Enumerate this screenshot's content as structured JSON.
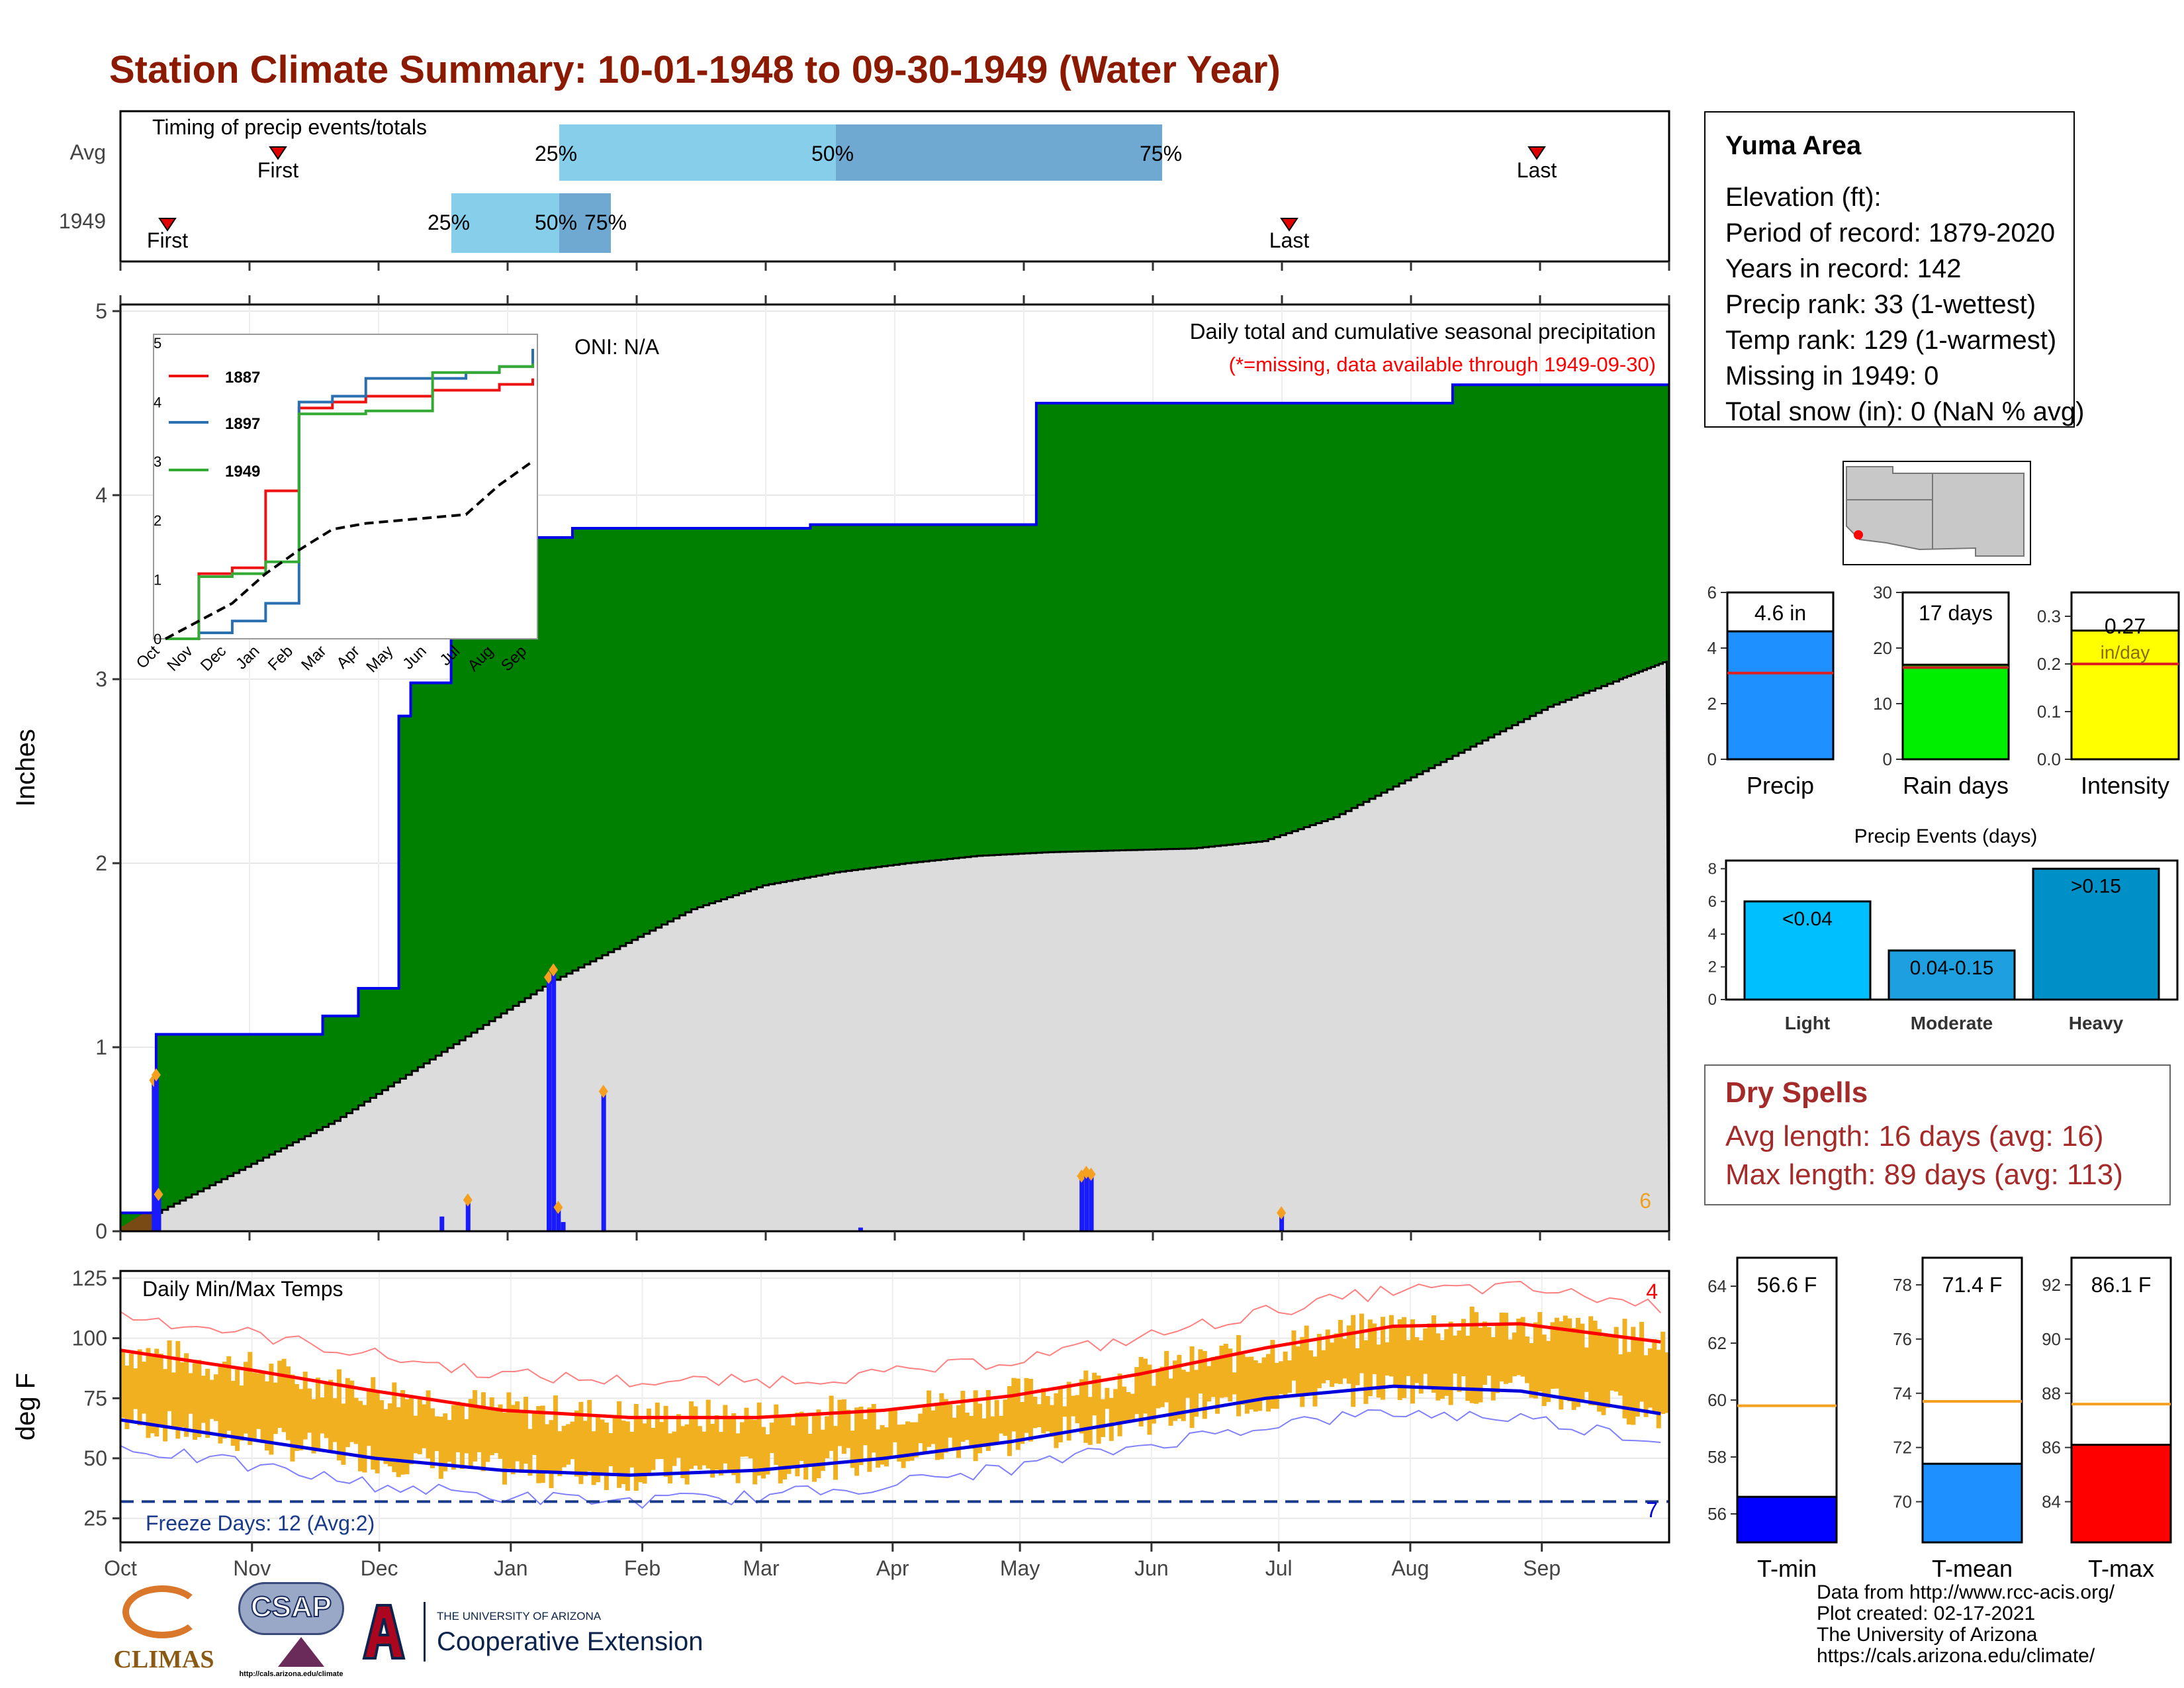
{
  "title": "Station Climate Summary: 10-01-1948 to 09-30-1949 (Water Year)",
  "timing_panel": {
    "label": "Timing of precip events/totals",
    "rows": [
      "Avg",
      "1949"
    ],
    "avg": {
      "first": "First",
      "last": "Last",
      "p25": "25%",
      "p50": "50%",
      "p75": "75%"
    },
    "year": {
      "first": "First",
      "last": "Last",
      "p25": "25%",
      "p50": "50%",
      "p75": "75%"
    }
  },
  "station": {
    "name": "Yuma Area",
    "elevation": "Elevation (ft):",
    "period": "Period of record: 1879-2020",
    "years": "Years in record: 142",
    "precip_rank": "Precip rank: 33 (1-wettest)",
    "temp_rank": "Temp rank: 129 (1-warmest)",
    "missing": "Missing in 1949: 0",
    "snow": "Total snow (in): 0 (NaN % avg)"
  },
  "precip_panel": {
    "ylabel": "Inches",
    "oni": "ONI: N/A",
    "caption": "Daily total and cumulative seasonal precipitation",
    "missing_note": "(*=missing, data available through 1949-09-30)",
    "corner_count": "6"
  },
  "temp_panel": {
    "ylabel": "deg F",
    "label": "Daily Min/Max Temps",
    "freeze": "Freeze Days: 12 (Avg:2)",
    "hot_count": "4",
    "cold_count": "7"
  },
  "dry_spells": {
    "title": "Dry Spells",
    "avg": "Avg length: 16 days (avg: 16)",
    "max": "Max length: 89 days (avg: 113)"
  },
  "events_panel": {
    "title": "Precip Events (days)"
  },
  "footer": {
    "l1": "Data from http://www.rcc-acis.org/",
    "l2": "Plot created: 02-17-2021",
    "l3": "The University of Arizona",
    "l4": "https://cals.arizona.edu/climate/"
  },
  "logos": {
    "climas": "CLIMAS",
    "csap": "CSAP",
    "csap_url": "http://cals.arizona.edu/climate",
    "ua_small": "THE UNIVERSITY OF ARIZONA",
    "coop": "Cooperative Extension"
  },
  "colors": {
    "title": "#8b1a00",
    "green": "#008000",
    "grey": "#dcdcdc",
    "blue": "#0000ff",
    "gold": "#f0b020",
    "red": "#ff0000",
    "dry": "#a52a2a"
  },
  "chart_data": [
    {
      "type": "area",
      "id": "cumulative-precip",
      "months": [
        "Oct",
        "Nov",
        "Dec",
        "Jan",
        "Feb",
        "Mar",
        "Apr",
        "May",
        "Jun",
        "Jul",
        "Aug",
        "Sep"
      ],
      "yticks": [
        "0",
        "1",
        "2",
        "3",
        "4",
        "5"
      ],
      "ylim": [
        0,
        5
      ],
      "series": [
        {
          "name": "1949",
          "x_days": [
            0,
            14,
            15,
            80,
            85,
            100,
            115,
            117,
            122,
            126,
            139,
            175,
            190,
            230,
            280,
            290,
            330,
            380,
            385,
            400,
            440,
            485,
            560,
            600,
            630,
            650
          ],
          "values": [
            0.1,
            0.12,
            1.07,
            1.07,
            1.17,
            1.32,
            1.32,
            2.8,
            2.98,
            2.98,
            3.77,
            3.77,
            3.82,
            3.82,
            3.82,
            3.84,
            3.84,
            3.84,
            4.5,
            4.5,
            4.5,
            4.5,
            4.6,
            4.6,
            4.6,
            4.6
          ]
        },
        {
          "x_days": [
            0,
            30,
            60,
            90,
            120,
            150,
            180,
            210,
            240,
            270,
            300,
            330,
            360,
            390,
            420,
            450,
            480,
            510,
            540,
            570,
            600,
            630,
            650
          ],
          "values": [
            0,
            0.2,
            0.4,
            0.6,
            0.85,
            1.1,
            1.35,
            1.55,
            1.75,
            1.88,
            1.95,
            2.0,
            2.04,
            2.06,
            2.07,
            2.08,
            2.12,
            2.25,
            2.45,
            2.65,
            2.85,
            3.0,
            3.1
          ]
        }
      ],
      "daily_bars": {
        "x_days": [
          14,
          15,
          16,
          135,
          146,
          180,
          182,
          184,
          186,
          203,
          311,
          404,
          406,
          408,
          488
        ],
        "values": [
          0.82,
          0.85,
          0.2,
          0.08,
          0.17,
          1.38,
          1.42,
          0.13,
          0.05,
          0.76,
          0.02,
          0.3,
          0.32,
          0.31,
          0.1
        ]
      }
    },
    {
      "type": "line",
      "id": "inset-cumulative",
      "categories": [
        "Oct",
        "Nov",
        "Dec",
        "Jan",
        "Feb",
        "Mar",
        "Apr",
        "May",
        "Jun",
        "Jul",
        "Aug",
        "Sep"
      ],
      "yticks": [
        "0",
        "1",
        "2",
        "3",
        "4",
        "5"
      ],
      "ylim": [
        0,
        5
      ],
      "series": [
        {
          "name": "1887",
          "color": "#ee1111",
          "values": [
            0,
            1.1,
            1.2,
            2.5,
            3.9,
            4.0,
            4.1,
            4.1,
            4.2,
            4.2,
            4.3,
            4.4
          ]
        },
        {
          "name": "1897",
          "color": "#2a6fb0",
          "values": [
            0,
            0.1,
            0.3,
            0.6,
            4.0,
            4.1,
            4.4,
            4.4,
            4.4,
            4.5,
            4.6,
            4.9
          ]
        },
        {
          "name": "1949",
          "color": "#33aa33",
          "values": [
            0,
            1.05,
            1.1,
            1.3,
            3.8,
            3.8,
            3.85,
            3.85,
            4.5,
            4.5,
            4.6,
            4.65
          ]
        },
        {
          "values": [
            0,
            0.3,
            0.6,
            1.1,
            1.5,
            1.85,
            1.95,
            2.0,
            2.05,
            2.1,
            2.6,
            3.0
          ]
        }
      ]
    },
    {
      "type": "bar",
      "id": "precip-total",
      "categories": [
        "Precip"
      ],
      "values": [
        4.6
      ],
      "average": 3.1,
      "label": "4.6 in",
      "yticks": [
        "0",
        "2",
        "4",
        "6"
      ],
      "ylim": [
        0,
        6
      ]
    },
    {
      "type": "bar",
      "id": "rain-days",
      "categories": [
        "Rain days"
      ],
      "values": [
        17
      ],
      "average": 16.5,
      "label": "17 days",
      "yticks": [
        "0",
        "10",
        "20",
        "30"
      ],
      "ylim": [
        0,
        30
      ]
    },
    {
      "type": "bar",
      "id": "intensity",
      "categories": [
        "Intensity"
      ],
      "values": [
        0.27
      ],
      "average": 0.2,
      "label": "0.27",
      "unit": "in/day",
      "yticks": [
        "0.0",
        "0.1",
        "0.2",
        "0.3"
      ],
      "ylim": [
        0,
        0.35
      ]
    },
    {
      "type": "bar",
      "id": "precip-events",
      "categories": [
        "Light",
        "Moderate",
        "Heavy"
      ],
      "values": [
        6,
        3,
        8
      ],
      "labels": [
        "<0.04",
        "0.04-0.15",
        ">0.15"
      ],
      "yticks": [
        "0",
        "2",
        "4",
        "6",
        "8"
      ],
      "ylim": [
        0,
        8.5
      ]
    },
    {
      "type": "line",
      "id": "daily-temps",
      "months": [
        "Oct",
        "Nov",
        "Dec",
        "Jan",
        "Feb",
        "Mar",
        "Apr",
        "May",
        "Jun",
        "Jul",
        "Aug",
        "Sep"
      ],
      "yticks": [
        "25",
        "50",
        "75",
        "100",
        "125"
      ],
      "ylim": [
        15,
        128
      ],
      "series": [
        {
          "x_days": [
            0,
            30,
            60,
            90,
            120,
            150,
            180,
            210,
            240,
            270,
            300,
            330,
            365
          ],
          "values": [
            95,
            87,
            78,
            70,
            67,
            67,
            70,
            76,
            85,
            96,
            105,
            106,
            98
          ]
        },
        {
          "x_days": [
            0,
            30,
            60,
            90,
            120,
            150,
            180,
            210,
            240,
            270,
            300,
            330,
            365
          ],
          "values": [
            66,
            58,
            50,
            45,
            43,
            45,
            50,
            57,
            66,
            75,
            80,
            78,
            68
          ]
        }
      ],
      "freeze_line": 32
    },
    {
      "type": "bar",
      "id": "tmin",
      "categories": [
        "T-min"
      ],
      "values": [
        56.6
      ],
      "average": 59.8,
      "label": "56.6 F",
      "yticks": [
        "56",
        "58",
        "60",
        "62",
        "64"
      ],
      "ylim": [
        55,
        65
      ]
    },
    {
      "type": "bar",
      "id": "tmean",
      "categories": [
        "T-mean"
      ],
      "values": [
        71.4
      ],
      "average": 73.7,
      "label": "71.4 F",
      "yticks": [
        "70",
        "72",
        "74",
        "76",
        "78"
      ],
      "ylim": [
        68.5,
        79
      ]
    },
    {
      "type": "bar",
      "id": "tmax",
      "categories": [
        "T-max"
      ],
      "values": [
        86.1
      ],
      "average": 87.6,
      "label": "86.1 F",
      "yticks": [
        "84",
        "86",
        "88",
        "90",
        "92"
      ],
      "ylim": [
        82.5,
        93
      ]
    }
  ]
}
